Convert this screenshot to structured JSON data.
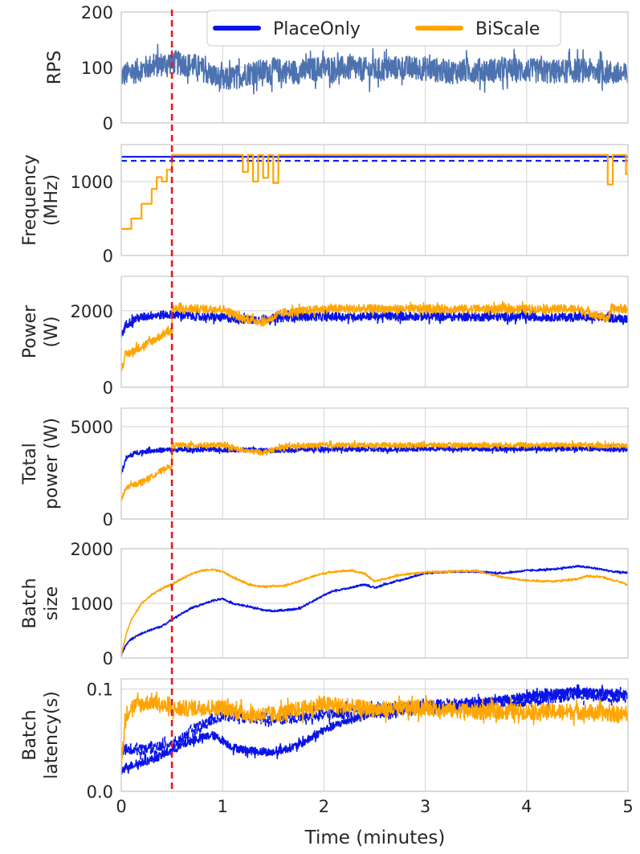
{
  "chart_data": {
    "type": "line",
    "figure_title": "",
    "xlabel": "Time (minutes)",
    "xlim": [
      0,
      5
    ],
    "xticks": [
      "0",
      "1",
      "2",
      "3",
      "4",
      "5"
    ],
    "marker_line": {
      "x": 0.5,
      "color": "#e41a1c",
      "style": "dashed"
    },
    "legend": {
      "placement": "top-center",
      "entries": [
        {
          "name": "PlaceOnly",
          "color": "#0a14e6"
        },
        {
          "name": "BiScale",
          "color": "#ffa500"
        }
      ]
    },
    "panels": [
      {
        "id": "rps",
        "ylabel": [
          "RPS"
        ],
        "ylim": [
          0,
          200
        ],
        "yticks": [
          "0",
          "100",
          "200"
        ],
        "ytick_values": [
          0,
          100,
          200
        ],
        "series": [
          {
            "name": "RPS",
            "color": "#4c72b0",
            "style": "solid",
            "x": [
              0,
              0.25,
              0.5,
              0.75,
              1,
              1.25,
              1.5,
              1.75,
              2,
              2.25,
              2.5,
              2.75,
              3,
              3.25,
              3.5,
              3.75,
              4,
              4.25,
              4.5,
              4.75,
              5
            ],
            "y": [
              85,
              100,
              110,
              102,
              75,
              90,
              95,
              92,
              100,
              98,
              95,
              100,
              98,
              92,
              95,
              95,
              95,
              92,
              95,
              93,
              85
            ],
            "noise": 22
          }
        ]
      },
      {
        "id": "frequency",
        "ylabel": [
          "Frequency",
          "(MHz)"
        ],
        "ylim": [
          0,
          1500
        ],
        "yticks": [
          "0",
          "1000"
        ],
        "ytick_values": [
          0,
          1000
        ],
        "series": [
          {
            "name": "PlaceOnly",
            "color": "#0a14e6",
            "style": "solid",
            "x": [
              0,
              5
            ],
            "y": [
              1335,
              1335
            ],
            "noise": 0
          },
          {
            "name": "PlaceOnly",
            "color": "#0a14e6",
            "style": "dashed",
            "x": [
              0,
              5
            ],
            "y": [
              1280,
              1280
            ],
            "noise": 0
          },
          {
            "name": "BiScale",
            "color": "#ffa500",
            "style": "solid",
            "x": [
              0,
              0.1,
              0.1,
              0.2,
              0.2,
              0.3,
              0.3,
              0.35,
              0.35,
              0.4,
              0.4,
              0.45,
              0.45,
              0.5,
              0.5,
              1.2,
              1.2,
              1.25,
              1.25,
              1.3,
              1.3,
              1.35,
              1.35,
              1.4,
              1.4,
              1.45,
              1.45,
              1.5,
              1.5,
              1.55,
              1.55,
              1.6,
              1.6,
              4.8,
              4.8,
              4.85,
              4.85,
              4.98,
              4.98,
              5
            ],
            "y": [
              360,
              360,
              500,
              500,
              700,
              700,
              900,
              900,
              1060,
              1060,
              1000,
              1000,
              1160,
              1160,
              1360,
              1360,
              1130,
              1130,
              1360,
              1360,
              1000,
              1000,
              1360,
              1360,
              1050,
              1050,
              1360,
              1360,
              980,
              980,
              1360,
              1360,
              1360,
              1360,
              960,
              960,
              1360,
              1360,
              1100,
              1100
            ],
            "noise": 0
          }
        ]
      },
      {
        "id": "power",
        "ylabel": [
          "Power",
          "(W)"
        ],
        "ylim": [
          0,
          2900
        ],
        "yticks": [
          "0",
          "2000"
        ],
        "ytick_values": [
          0,
          2000
        ],
        "series": [
          {
            "name": "PlaceOnly",
            "color": "#0a14e6",
            "style": "solid",
            "x": [
              0,
              0.05,
              0.15,
              0.3,
              0.5,
              0.75,
              1,
              1.25,
              1.5,
              1.75,
              2,
              2.5,
              3,
              3.5,
              4,
              4.5,
              5
            ],
            "y": [
              1350,
              1650,
              1800,
              1880,
              1900,
              1850,
              1820,
              1760,
              1800,
              1850,
              1840,
              1860,
              1850,
              1840,
              1840,
              1830,
              1800
            ],
            "noise": 110
          },
          {
            "name": "BiScale",
            "color": "#ffa500",
            "style": "solid",
            "x": [
              0,
              0.05,
              0.15,
              0.3,
              0.45,
              0.5,
              0.5,
              1,
              1.2,
              1.4,
              1.6,
              2,
              2.5,
              3,
              3.5,
              4,
              4.5,
              4.8,
              4.85,
              5
            ],
            "y": [
              500,
              850,
              1000,
              1200,
              1450,
              1450,
              2050,
              2050,
              1800,
              1700,
              1950,
              2050,
              2050,
              2050,
              2050,
              2050,
              2050,
              1800,
              2050,
              2050
            ],
            "noise": 110
          }
        ]
      },
      {
        "id": "total_power",
        "ylabel": [
          "Total",
          "power (W)"
        ],
        "ylim": [
          0,
          6000
        ],
        "yticks": [
          "0",
          "5000"
        ],
        "ytick_values": [
          0,
          5000
        ],
        "series": [
          {
            "name": "PlaceOnly",
            "color": "#0a14e6",
            "style": "solid",
            "x": [
              0,
              0.05,
              0.15,
              0.3,
              0.5,
              1,
              1.5,
              2,
              2.5,
              3,
              3.5,
              4,
              4.5,
              5
            ],
            "y": [
              2500,
              3300,
              3600,
              3700,
              3750,
              3750,
              3700,
              3800,
              3750,
              3800,
              3800,
              3800,
              3800,
              3750
            ],
            "noise": 130
          },
          {
            "name": "BiScale",
            "color": "#ffa500",
            "style": "solid",
            "x": [
              0,
              0.05,
              0.15,
              0.3,
              0.45,
              0.5,
              0.5,
              1,
              1.2,
              1.4,
              1.6,
              2,
              2.5,
              3,
              3.5,
              4,
              4.5,
              5
            ],
            "y": [
              1000,
              1700,
              1900,
              2300,
              2800,
              2800,
              4000,
              4000,
              3700,
              3600,
              3900,
              4000,
              4000,
              4000,
              4000,
              4000,
              4000,
              3950
            ],
            "noise": 140
          }
        ]
      },
      {
        "id": "batch_size",
        "ylabel": [
          "Batch",
          "size"
        ],
        "ylim": [
          0,
          2000
        ],
        "yticks": [
          "0",
          "1000",
          "2000"
        ],
        "ytick_values": [
          0,
          1000,
          2000
        ],
        "series": [
          {
            "name": "PlaceOnly",
            "color": "#0a14e6",
            "style": "solid",
            "x": [
              0,
              0.05,
              0.1,
              0.2,
              0.3,
              0.4,
              0.5,
              0.6,
              0.7,
              0.8,
              0.9,
              1,
              1.1,
              1.2,
              1.3,
              1.4,
              1.5,
              1.6,
              1.75,
              1.9,
              2,
              2.1,
              2.25,
              2.4,
              2.5,
              2.6,
              2.75,
              2.9,
              3,
              3.25,
              3.5,
              3.75,
              4,
              4.25,
              4.5,
              4.6,
              4.75,
              4.85,
              5
            ],
            "y": [
              50,
              250,
              350,
              450,
              520,
              580,
              700,
              820,
              920,
              980,
              1050,
              1080,
              1000,
              960,
              920,
              880,
              860,
              870,
              900,
              1050,
              1150,
              1230,
              1280,
              1350,
              1280,
              1350,
              1420,
              1500,
              1550,
              1580,
              1580,
              1550,
              1600,
              1620,
              1680,
              1660,
              1620,
              1580,
              1560
            ],
            "noise": 16
          },
          {
            "name": "BiScale",
            "color": "#ffa500",
            "style": "solid",
            "x": [
              0,
              0.05,
              0.1,
              0.2,
              0.3,
              0.4,
              0.5,
              0.6,
              0.7,
              0.8,
              0.9,
              1,
              1.1,
              1.25,
              1.4,
              1.5,
              1.6,
              1.75,
              1.9,
              2,
              2.1,
              2.25,
              2.4,
              2.5,
              2.6,
              2.75,
              2.9,
              3,
              3.25,
              3.5,
              3.75,
              4,
              4.25,
              4.5,
              4.6,
              4.75,
              4.85,
              4.95,
              5
            ],
            "y": [
              50,
              450,
              700,
              1000,
              1150,
              1270,
              1350,
              1450,
              1550,
              1600,
              1620,
              1580,
              1480,
              1350,
              1300,
              1320,
              1320,
              1400,
              1500,
              1550,
              1580,
              1600,
              1550,
              1400,
              1450,
              1520,
              1550,
              1570,
              1580,
              1600,
              1480,
              1420,
              1400,
              1450,
              1500,
              1480,
              1420,
              1380,
              1320
            ],
            "noise": 16
          }
        ]
      },
      {
        "id": "batch_latency",
        "ylabel": [
          "Batch",
          "latency(s)"
        ],
        "ylim": [
          0,
          0.11
        ],
        "yticks": [
          "0.0",
          "0.1"
        ],
        "ytick_values": [
          0,
          0.1
        ],
        "series": [
          {
            "name": "PlaceOnly",
            "color": "#0a14e6",
            "style": "solid",
            "x": [
              0,
              0.05,
              0.2,
              0.35,
              0.5,
              0.7,
              0.9,
              1,
              1.1,
              1.25,
              1.5,
              1.75,
              2,
              2.25,
              2.5,
              3,
              3.5,
              4,
              4.5,
              5
            ],
            "y": [
              0.02,
              0.024,
              0.028,
              0.033,
              0.04,
              0.05,
              0.055,
              0.05,
              0.043,
              0.04,
              0.038,
              0.045,
              0.06,
              0.07,
              0.076,
              0.082,
              0.086,
              0.093,
              0.098,
              0.095
            ],
            "noise": 0.004
          },
          {
            "name": "PlaceOnly",
            "color": "#0a14e6",
            "style": "dashed",
            "x": [
              0,
              0.5,
              0.7,
              1,
              1.5,
              2,
              2.5,
              3,
              3.5,
              4,
              4.5,
              5
            ],
            "y": [
              0.04,
              0.045,
              0.06,
              0.075,
              0.07,
              0.075,
              0.08,
              0.085,
              0.085,
              0.088,
              0.095,
              0.092
            ],
            "noise": 0.006
          },
          {
            "name": "BiScale",
            "color": "#ffa500",
            "style": "solid",
            "x": [
              0,
              0.05,
              0.1,
              0.2,
              0.3,
              0.5,
              0.75,
              1,
              1.25,
              1.5,
              2,
              2.5,
              3,
              3.5,
              4,
              4.5,
              5
            ],
            "y": [
              0.03,
              0.075,
              0.083,
              0.085,
              0.088,
              0.08,
              0.082,
              0.082,
              0.075,
              0.075,
              0.085,
              0.08,
              0.082,
              0.078,
              0.078,
              0.078,
              0.075
            ],
            "noise": 0.008
          }
        ]
      }
    ]
  }
}
